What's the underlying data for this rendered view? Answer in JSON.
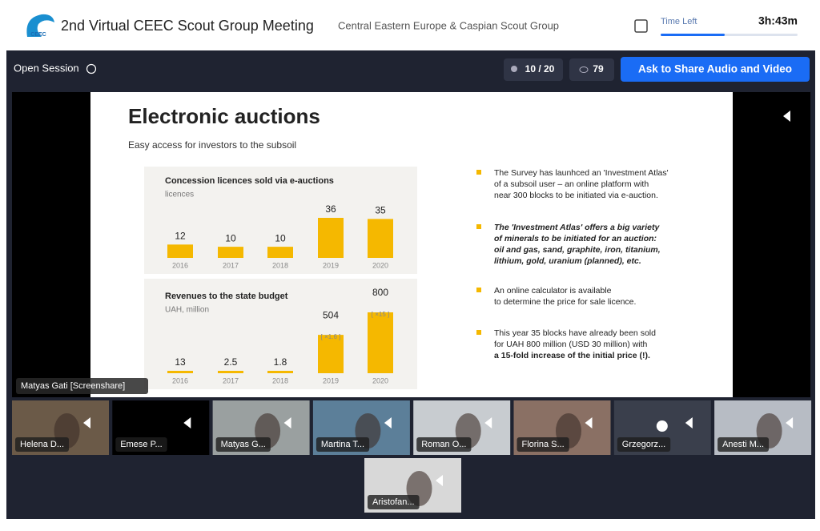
{
  "header": {
    "logo": "CEEC",
    "title": "2nd Virtual CEEC Scout Group Meeting",
    "subtitle": "Central Eastern Europe & Caspian Scout Group",
    "time_left_label": "Time Left",
    "time_left": "3h:43m"
  },
  "toolbar": {
    "session": "Open Session",
    "participants": "10 / 20",
    "viewers": "79",
    "button": "Ask to Share Audio and Video"
  },
  "slide": {
    "title": "Electronic auctions",
    "subtitle": "Easy access  for investors to the subsoil",
    "charts": [
      {
        "type": "bar",
        "title": "Concession licences sold via e-auctions",
        "unit": "licences",
        "categories": [
          "2016",
          "2017",
          "2018",
          "2019",
          "2020"
        ],
        "values": [
          12,
          10,
          10,
          36,
          35
        ],
        "color": "#f5b800"
      },
      {
        "type": "bar",
        "title": "Revenues to the state budget",
        "unit": "UAH, million",
        "categories": [
          "2016",
          "2017",
          "2018",
          "2019",
          "2020"
        ],
        "values": [
          13,
          2.5,
          1.8,
          504,
          800
        ],
        "notes": [
          null,
          null,
          null,
          "[ ×1.6 ]",
          "[ ×15 ]"
        ],
        "color": "#f5b800"
      }
    ],
    "bullets": [
      {
        "lines": [
          "The Survey has launhced an 'Investment Atlas'",
          "of a subsoil user – an online platform with",
          "near 300 blocks to be initiated via e-auction."
        ]
      },
      {
        "lines": [
          "The 'Investment Atlas' offers a big variety",
          "of minerals to be initiated for an auction:",
          "oil and gas, sand, graphite, iron, titanium,",
          "lithium, gold, uranium (planned), etc."
        ]
      },
      {
        "lines": [
          "An online calculator  is available",
          "to determine  the price for sale licence."
        ]
      },
      {
        "lines": [
          "This year 35 blocks have already been sold",
          "for UAH 800 million (USD 30 million) with",
          "a 15-fold increase  of the initial price (!)."
        ]
      }
    ]
  },
  "presenter": "Matyas Gati [Screenshare]",
  "participants": [
    "Helena D...",
    "Emese P...",
    "Matyas G...",
    "Martina T...",
    "Roman O...",
    "Florina S...",
    "Grzegorz...",
    "Anesti M...",
    "Aristofan..."
  ]
}
